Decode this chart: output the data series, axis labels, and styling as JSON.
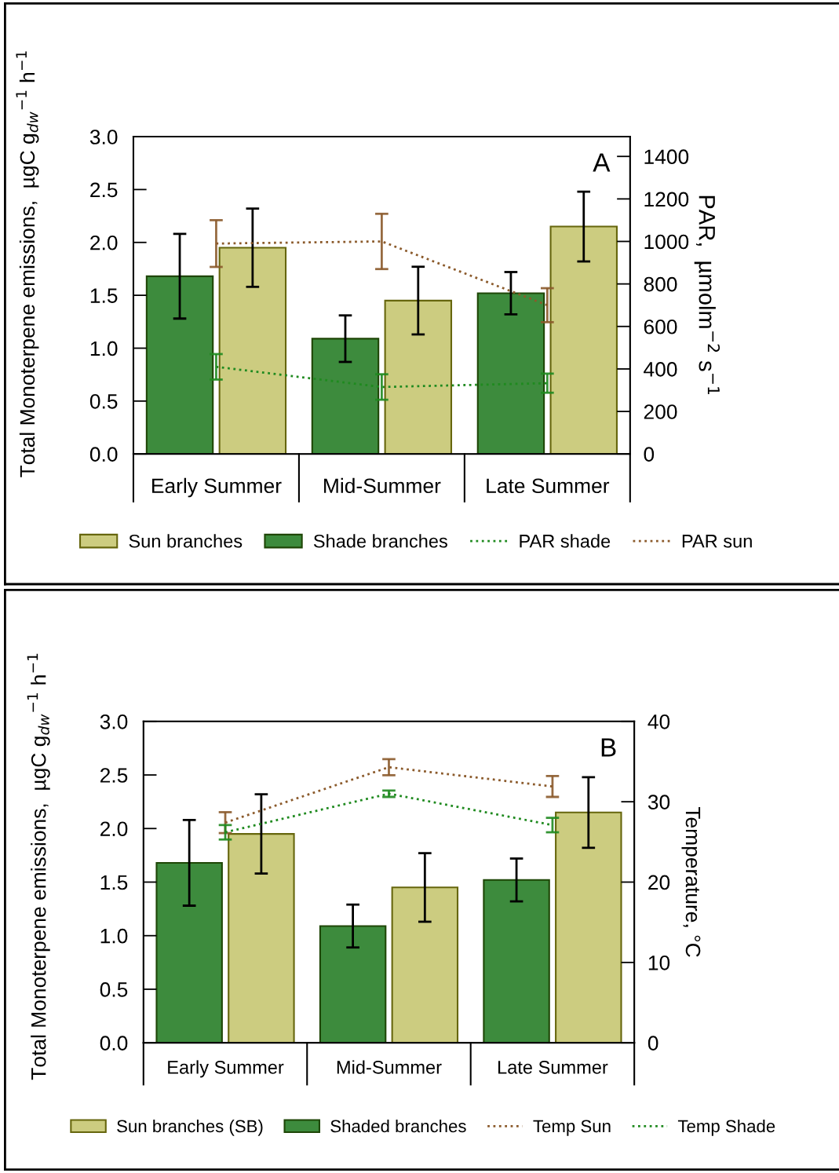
{
  "chart_data": [
    {
      "type": "bar",
      "categories": [
        "Early Summer",
        "Mid-Summer",
        "Late Summer"
      ],
      "ylabel": "Total Monoterpene emissions,  µgC g$_{dw}$$^{−1}$ h$^{−1}$",
      "y2label": "PAR,  µmolm$^{−2}$ s$^{−1}$",
      "annotations": [
        "A"
      ],
      "legend": "bottom",
      "grid": false,
      "line_style": "dotted",
      "marker": "none",
      "ylim": [
        0,
        3.0
      ],
      "yticks": [
        {
          "value": 0,
          "label": "0.0"
        },
        {
          "value": 0.5,
          "label": "0.5"
        },
        {
          "value": 1,
          "label": "1.0"
        },
        {
          "value": 1.5,
          "label": "1.5"
        },
        {
          "value": 2,
          "label": "2.0"
        },
        {
          "value": 2.5,
          "label": "2.5"
        },
        {
          "value": 3,
          "label": "3.0"
        }
      ],
      "y2lim": [
        0,
        1493
      ],
      "y2ticks": [
        0,
        200,
        400,
        600,
        800,
        1000,
        1200,
        1400
      ],
      "series": [
        {
          "name": "Shade branches",
          "color": "#3d8b3d",
          "values": [
            1.68,
            1.09,
            1.52
          ],
          "errors": [
            0.4,
            0.22,
            0.2
          ]
        },
        {
          "name": "Sun branches",
          "color": "#cccc80",
          "values": [
            1.95,
            1.45,
            2.15
          ],
          "errors": [
            0.37,
            0.32,
            0.33
          ]
        },
        {
          "name": "PAR shade",
          "type": "line",
          "axis": "y2",
          "color": "#1f8a1f",
          "values": [
            410,
            315,
            333
          ],
          "errors": [
            60,
            60,
            45
          ]
        },
        {
          "name": "PAR sun",
          "type": "line",
          "axis": "y2",
          "color": "#8b5a2b",
          "values": [
            990,
            1000,
            700
          ],
          "errors": [
            110,
            130,
            80
          ]
        }
      ]
    },
    {
      "type": "bar",
      "categories": [
        "Early Summer",
        "Mid-Summer",
        "Late Summer"
      ],
      "ylabel": "Total Monoterpene emissions,  µgC g$_{dw}$$^{−1}$ h$^{−1}$",
      "y2label": "Temperature, °C",
      "annotations": [
        "B"
      ],
      "legend": "bottom",
      "grid": false,
      "line_style": "dotted",
      "marker": "none",
      "ylim": [
        0,
        3.0
      ],
      "yticks": [
        {
          "value": 0,
          "label": "0.0"
        },
        {
          "value": 0.5,
          "label": "0.5"
        },
        {
          "value": 1,
          "label": "1.0"
        },
        {
          "value": 1.5,
          "label": "1.5"
        },
        {
          "value": 2,
          "label": "2.0"
        },
        {
          "value": 2.5,
          "label": "2.5"
        },
        {
          "value": 3,
          "label": "3.0"
        }
      ],
      "y2lim": [
        0,
        40
      ],
      "y2ticks": [
        0,
        10,
        20,
        30,
        40
      ],
      "series": [
        {
          "name": "Shaded branches",
          "color": "#3d8b3d",
          "values": [
            1.68,
            1.09,
            1.52
          ],
          "errors": [
            0.4,
            0.2,
            0.2
          ]
        },
        {
          "name": "Sun branches (SB)",
          "color": "#cccc80",
          "values": [
            1.95,
            1.45,
            2.15
          ],
          "errors": [
            0.37,
            0.32,
            0.33
          ]
        },
        {
          "name": "Temp Sun",
          "type": "line",
          "axis": "y2",
          "color": "#8b5a2b",
          "values": [
            27.4,
            34.3,
            31.9
          ],
          "errors": [
            1.3,
            1.0,
            1.3
          ]
        },
        {
          "name": "Temp Shade",
          "type": "line",
          "axis": "y2",
          "color": "#1f8a1f",
          "values": [
            26.2,
            31.0,
            27.1
          ],
          "errors": [
            0.9,
            0.4,
            0.9
          ]
        }
      ]
    }
  ]
}
